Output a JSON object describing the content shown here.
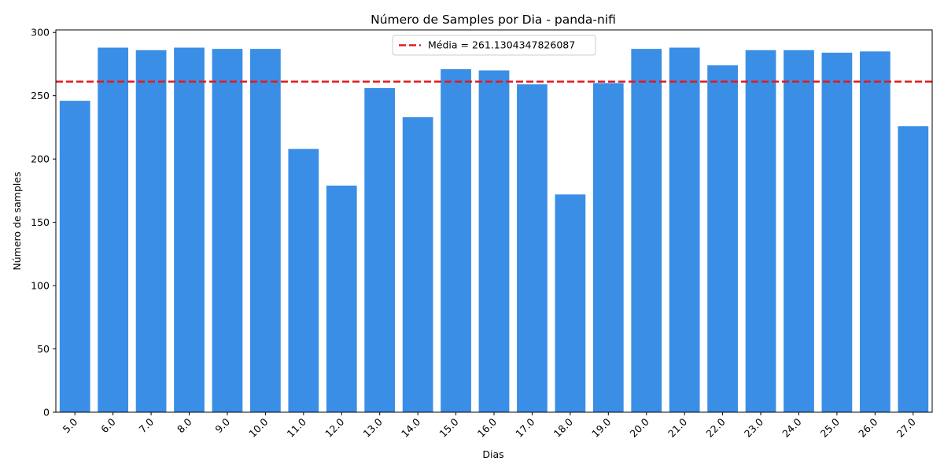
{
  "chart_data": {
    "type": "bar",
    "title": "Número de Samples por Dia - panda-nifi",
    "xlabel": "Dias",
    "ylabel": "Número de samples",
    "categories": [
      "5.0",
      "6.0",
      "7.0",
      "8.0",
      "9.0",
      "10.0",
      "11.0",
      "12.0",
      "13.0",
      "14.0",
      "15.0",
      "16.0",
      "17.0",
      "18.0",
      "19.0",
      "20.0",
      "21.0",
      "22.0",
      "23.0",
      "24.0",
      "25.0",
      "26.0",
      "27.0"
    ],
    "values": [
      246,
      288,
      286,
      288,
      287,
      287,
      208,
      179,
      256,
      233,
      271,
      270,
      259,
      172,
      260,
      287,
      288,
      274,
      286,
      286,
      284,
      285,
      226
    ],
    "ylim": [
      0,
      302
    ],
    "yticks": [
      0,
      50,
      100,
      150,
      200,
      250,
      300
    ],
    "bar_color": "#3a8ee6",
    "mean": {
      "value": 261.1304347826087,
      "label": "Média = 261.1304347826087",
      "color": "#e41a1c",
      "style": "dashed"
    },
    "legend_position": "top-center",
    "grid": false
  }
}
